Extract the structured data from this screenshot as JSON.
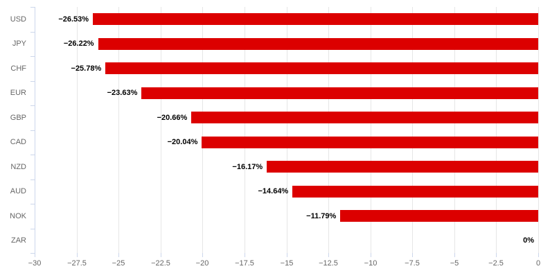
{
  "chart_data": {
    "type": "bar",
    "orientation": "horizontal",
    "title": "",
    "xlabel": "",
    "ylabel": "",
    "grid": true,
    "legend": false,
    "categories": [
      "USD",
      "JPY",
      "CHF",
      "EUR",
      "GBP",
      "CAD",
      "NZD",
      "AUD",
      "NOK",
      "ZAR"
    ],
    "values": [
      -26.53,
      -26.22,
      -25.78,
      -23.63,
      -20.66,
      -20.04,
      -16.17,
      -14.64,
      -11.79,
      0
    ],
    "data_labels": [
      "−26.53%",
      "−26.22%",
      "−25.78%",
      "−23.63%",
      "−20.66%",
      "−20.04%",
      "−16.17%",
      "−14.64%",
      "−11.79%",
      "0%"
    ],
    "xlim": [
      -30,
      0
    ],
    "x_ticks": [
      -30,
      -27.5,
      -25,
      -22.5,
      -20,
      -17.5,
      -15,
      -12.5,
      -10,
      -7.5,
      -5,
      -2.5,
      0
    ],
    "x_tick_labels": [
      "−30",
      "−27.5",
      "−25",
      "−22.5",
      "−20",
      "−17.5",
      "−15",
      "−12.5",
      "−10",
      "−7.5",
      "−5",
      "−2.5",
      "0"
    ],
    "colors": {
      "bar": "#dc0000",
      "gridline": "#e6e6e6",
      "axis_line": "#ccd6eb",
      "tick_mark": "#ccd6eb",
      "tick_label": "#666666",
      "category_label": "#666666",
      "data_label": "#000000",
      "background": "#ffffff"
    }
  }
}
